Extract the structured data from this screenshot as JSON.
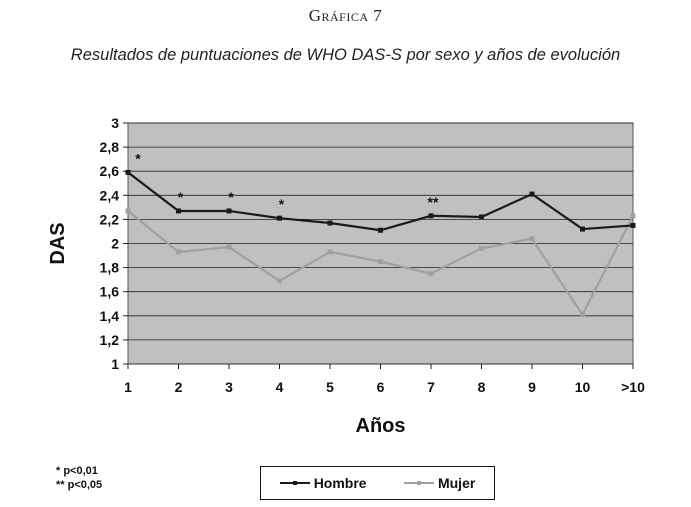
{
  "figure": {
    "label": "Gráfica 7",
    "title": "Resultados de puntuaciones de WHO DAS-S por sexo y años de evolución"
  },
  "footnotes": [
    "* p<0,01",
    "** p<0,05"
  ],
  "chart_data": {
    "type": "line",
    "title": "Resultados de puntuaciones de WHO DAS-S por sexo y años de evolución",
    "xlabel": "Años",
    "ylabel": "DAS",
    "categories": [
      "1",
      "2",
      "3",
      "4",
      "5",
      "6",
      "7",
      "8",
      "9",
      "10",
      ">10"
    ],
    "ylim": [
      1,
      3
    ],
    "yticks": [
      "1",
      "1,2",
      "1,4",
      "1,6",
      "1,8",
      "2",
      "2,2",
      "2,4",
      "2,6",
      "2,8",
      "3"
    ],
    "grid": true,
    "legend_position": "bottom",
    "plot_background": "#c0c0c0",
    "series": [
      {
        "name": "Hombre",
        "color": "#1a1a1a",
        "values": [
          2.59,
          2.27,
          2.27,
          2.21,
          2.17,
          2.11,
          2.23,
          2.22,
          2.41,
          2.12,
          2.15
        ]
      },
      {
        "name": "Mujer",
        "color": "#a0a0a0",
        "values": [
          2.27,
          1.93,
          1.97,
          1.69,
          1.93,
          1.85,
          1.75,
          1.96,
          2.04,
          1.41,
          2.23
        ]
      }
    ],
    "annotations": [
      {
        "category": "1",
        "text": "*"
      },
      {
        "category": "2",
        "text": "*"
      },
      {
        "category": "3",
        "text": "*"
      },
      {
        "category": "4",
        "text": "*"
      },
      {
        "category": "7",
        "text": "**"
      }
    ]
  }
}
